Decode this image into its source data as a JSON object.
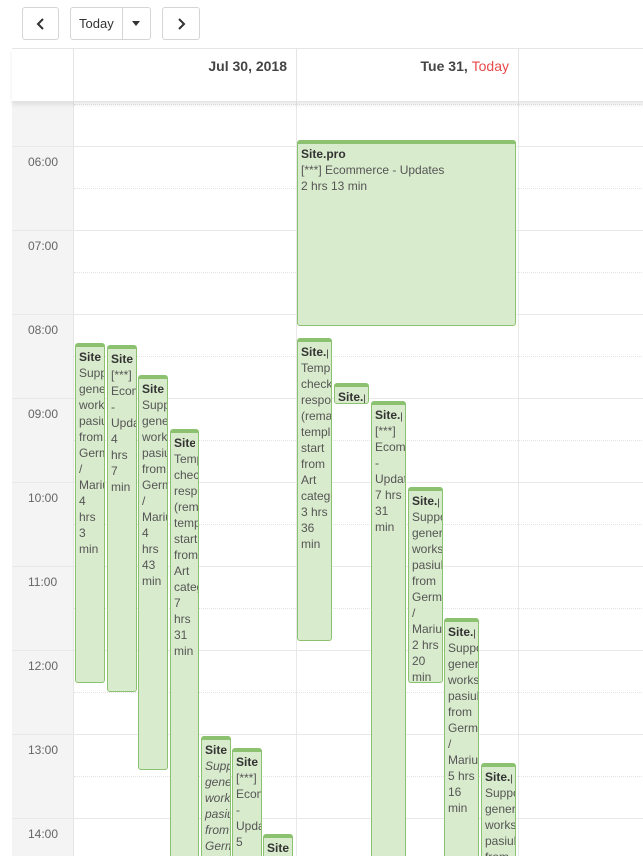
{
  "toolbar": {
    "prev_icon": "chevron-left-icon",
    "today_label": "Today",
    "dropdown_icon": "caret-down-icon",
    "next_icon": "chevron-right-icon"
  },
  "header": {
    "day1": "Jul 30, 2018",
    "day2_prefix": "Tue 31,",
    "day2_today": "Today",
    "today_color": "#e8494a"
  },
  "times": [
    "06:00",
    "07:00",
    "08:00",
    "09:00",
    "10:00",
    "11:00",
    "12:00",
    "13:00",
    "14:00"
  ],
  "colors": {
    "event_bg": "#d9ebcd",
    "event_border": "#8cc26f"
  },
  "events": [
    {
      "title": "Site.pro",
      "desc": "Support general works pasiulu from Germany / Marius",
      "dur": "4 hrs 3 min"
    },
    {
      "title": "Site.pro",
      "desc": "[***] Ecommerce - Updates",
      "dur": "4 hrs 7 min"
    },
    {
      "title": "Site.pro",
      "desc": "Support general works pasiulu from Germany / Marius",
      "dur": "4 hrs 43 min"
    },
    {
      "title": "Site.pro",
      "desc": "Template check responsive (remaining templates start from Art category)",
      "dur": "7 hrs 31 min"
    },
    {
      "title": "Site.pro",
      "desc": "Support general works pasiulu from Germany",
      "dur": ""
    },
    {
      "title": "Site.pro",
      "desc": "[***] Ecommerce - Updates",
      "dur": "5"
    },
    {
      "title": "Site.pro",
      "desc": "",
      "dur": ""
    },
    {
      "title": "Site.pro",
      "desc": "[***] Ecommerce - Updates",
      "dur": "2 hrs 13 min"
    },
    {
      "title": "Site.pro",
      "desc": "Template check responsive (remaining templates start from Art category)",
      "dur": "3 hrs 36 min"
    },
    {
      "title": "Site.pro",
      "desc": "",
      "dur": ""
    },
    {
      "title": "Site.pro",
      "desc": "[***] Ecommerce - Updates",
      "dur": "7 hrs 31 min"
    },
    {
      "title": "Site.pro",
      "desc": "Support general works pasiulu from Germany / Marius",
      "dur": "2 hrs 20 min"
    },
    {
      "title": "Site.pro",
      "desc": "Support general works pasiulu from Germany / Marius",
      "dur": "5 hrs 16 min"
    },
    {
      "title": "Site.pro",
      "desc": "Support general works pasiulu from",
      "dur": ""
    }
  ]
}
